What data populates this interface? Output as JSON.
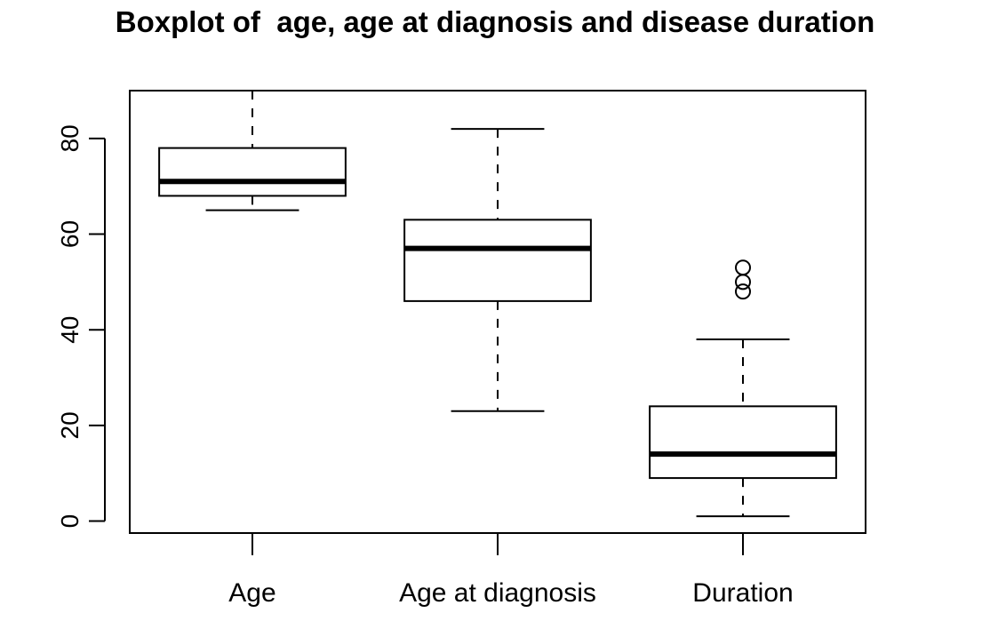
{
  "chart_data": {
    "type": "boxplot",
    "title": "Boxplot of  age, age at diagnosis and disease duration",
    "xlabel": "",
    "ylabel": "",
    "ylim": [
      -2.5,
      90
    ],
    "yticks": [
      0,
      20,
      40,
      60,
      80
    ],
    "grid": false,
    "legend": "none",
    "categories": [
      "Age",
      "Age at diagnosis",
      "Duration"
    ],
    "boxes": [
      {
        "whisker_low": 65,
        "q1": 68,
        "median": 71,
        "q3": 78,
        "whisker_high": 90,
        "outliers": []
      },
      {
        "whisker_low": 23,
        "q1": 46,
        "median": 57,
        "q3": 63,
        "whisker_high": 82,
        "outliers": []
      },
      {
        "whisker_low": 1,
        "q1": 9,
        "median": 14,
        "q3": 24,
        "whisker_high": 38,
        "outliers": [
          48,
          50,
          53
        ]
      }
    ],
    "colors": {
      "box_fill": "#ffffff",
      "stroke": "#000000"
    }
  }
}
